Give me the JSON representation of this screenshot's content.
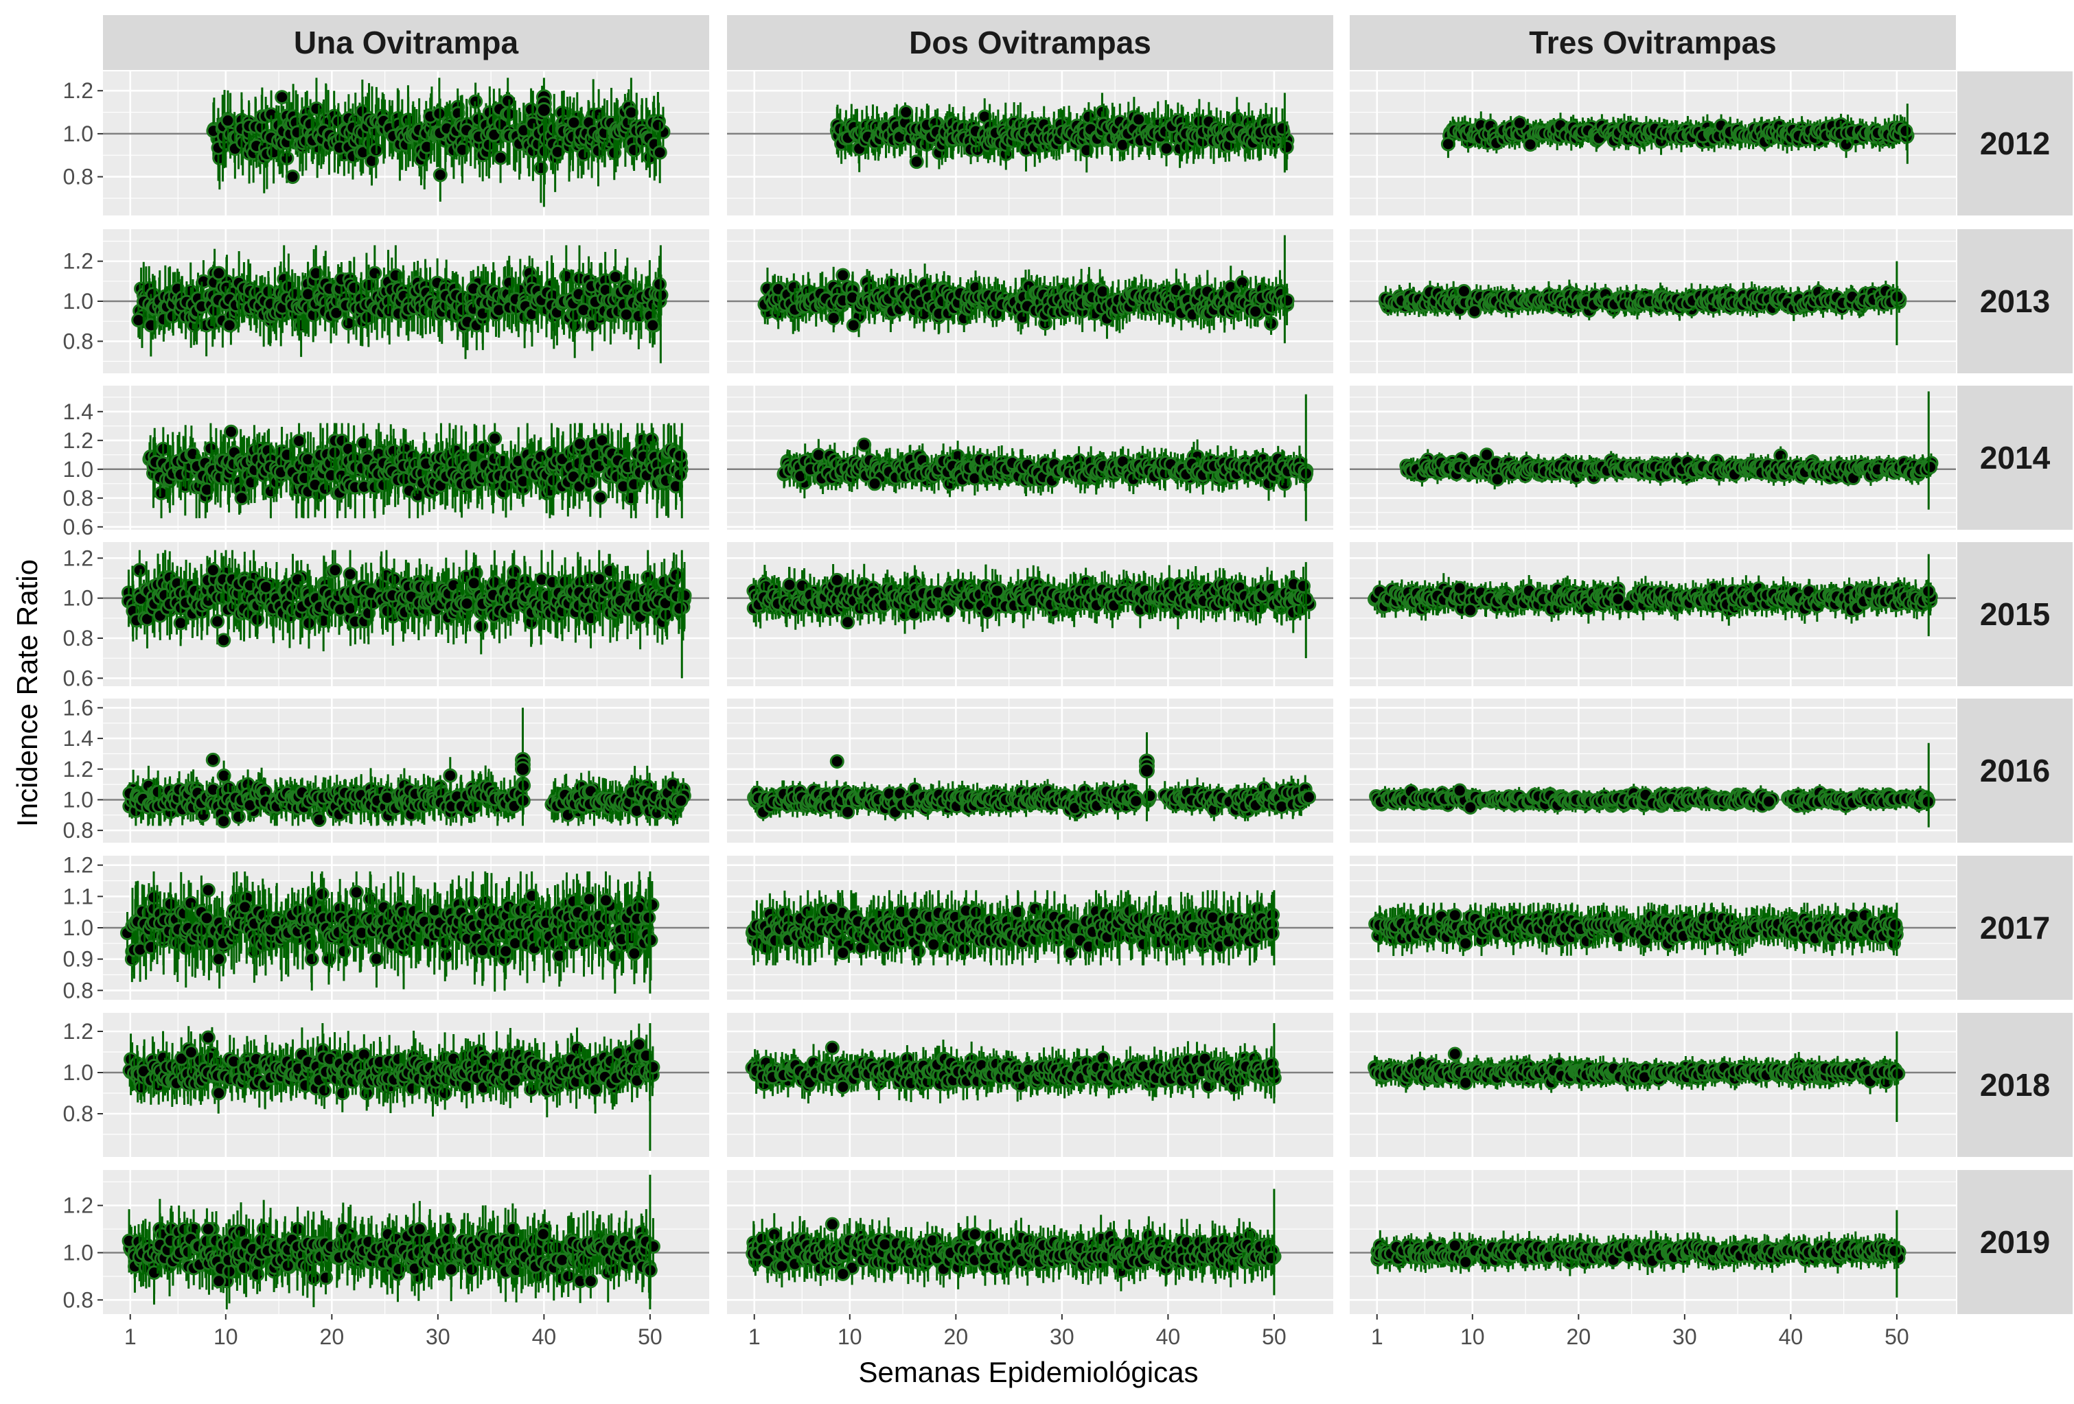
{
  "chart_data": {
    "type": "scatter",
    "subtype": "faceted point-range (estimate with error bars)",
    "xlabel": "Semanas Epidemiológicas",
    "ylabel": "Incidence Rate Ratio",
    "xlim": [
      1,
      53
    ],
    "x_ticks": [
      1,
      10,
      20,
      30,
      40,
      50
    ],
    "reference_line": 1.0,
    "columns": [
      "Una Ovitrampa",
      "Dos Ovitrampas",
      "Tres Ovitrampas"
    ],
    "rows": [
      "2012",
      "2013",
      "2014",
      "2015",
      "2016",
      "2017",
      "2018",
      "2019"
    ],
    "rows_config": [
      {
        "year": "2012",
        "ylim": [
          0.62,
          1.29
        ],
        "ticks": [
          0.8,
          1.0,
          1.2
        ],
        "tick_labels": [
          "0.8",
          "1.0",
          "1.2"
        ]
      },
      {
        "year": "2013",
        "ylim": [
          0.64,
          1.36
        ],
        "ticks": [
          0.8,
          1.0,
          1.2
        ],
        "tick_labels": [
          "0.8",
          "1.0",
          "1.2"
        ]
      },
      {
        "year": "2014",
        "ylim": [
          0.58,
          1.58
        ],
        "ticks": [
          0.6,
          0.8,
          1.0,
          1.2,
          1.4
        ],
        "tick_labels": [
          "0.6",
          "0.8",
          "1.0",
          "1.2",
          "1.4"
        ]
      },
      {
        "year": "2015",
        "ylim": [
          0.56,
          1.28
        ],
        "ticks": [
          0.6,
          0.8,
          1.0,
          1.2
        ],
        "tick_labels": [
          "0.6",
          "0.8",
          "1.0",
          "1.2"
        ]
      },
      {
        "year": "2016",
        "ylim": [
          0.72,
          1.66
        ],
        "ticks": [
          0.8,
          1.0,
          1.2,
          1.4,
          1.6
        ],
        "tick_labels": [
          "0.8",
          "1.0",
          "1.2",
          "1.4",
          "1.6"
        ]
      },
      {
        "year": "2017",
        "ylim": [
          0.77,
          1.23
        ],
        "ticks": [
          0.8,
          0.9,
          1.0,
          1.1,
          1.2
        ],
        "tick_labels": [
          "0.8",
          "0.9",
          "1.0",
          "1.1",
          "1.2"
        ]
      },
      {
        "year": "2018",
        "ylim": [
          0.59,
          1.29
        ],
        "ticks": [
          0.8,
          1.0,
          1.2
        ],
        "tick_labels": [
          "0.8",
          "1.0",
          "1.2"
        ]
      },
      {
        "year": "2019",
        "ylim": [
          0.74,
          1.35
        ],
        "ticks": [
          0.8,
          1.0,
          1.2
        ],
        "tick_labels": [
          "0.8",
          "1.0",
          "1.2"
        ]
      }
    ],
    "series_notes": "Each facet shows, per epidemiological week, a cluster of point estimates (black dots with green outline) with vertical green 95% interval lines; reference line at IRR = 1.0.",
    "panels": [
      {
        "column": "Una Ovitrampa",
        "year": "2012",
        "x_range": [
          9,
          51
        ],
        "weeks_with_estimates": [
          [
            9,
            51
          ]
        ],
        "typical_range": [
          0.9,
          1.1
        ],
        "min_point": 0.8,
        "max_point": 1.17,
        "ci_range": [
          0.66,
          1.26
        ],
        "highlight_point": {
          "week": 40,
          "value": 1.17
        }
      },
      {
        "column": "Dos Ovitrampas",
        "year": "2012",
        "x_range": [
          9,
          51
        ],
        "weeks_with_estimates": [
          [
            9,
            51
          ]
        ],
        "typical_range": [
          0.94,
          1.06
        ],
        "min_point": 0.87,
        "max_point": 1.1,
        "ci_range": [
          0.82,
          1.19
        ]
      },
      {
        "column": "Tres Ovitrampas",
        "year": "2012",
        "x_range": [
          8,
          51
        ],
        "weeks_with_estimates": [
          [
            8,
            51
          ]
        ],
        "typical_range": [
          0.97,
          1.03
        ],
        "min_point": 0.95,
        "max_point": 1.05,
        "ci_range": [
          0.86,
          1.14
        ]
      },
      {
        "column": "Una Ovitrampa",
        "year": "2013",
        "x_range": [
          2,
          51
        ],
        "weeks_with_estimates": [
          [
            2,
            51
          ]
        ],
        "typical_range": [
          0.9,
          1.1
        ],
        "min_point": 0.88,
        "max_point": 1.14,
        "ci_range": [
          0.69,
          1.28
        ]
      },
      {
        "column": "Dos Ovitrampas",
        "year": "2013",
        "x_range": [
          2,
          51
        ],
        "weeks_with_estimates": [
          [
            2,
            51
          ]
        ],
        "typical_range": [
          0.94,
          1.06
        ],
        "min_point": 0.88,
        "max_point": 1.13,
        "ci_range": [
          0.79,
          1.33
        ]
      },
      {
        "column": "Tres Ovitrampas",
        "year": "2013",
        "x_range": [
          2,
          50
        ],
        "weeks_with_estimates": [
          [
            2,
            50
          ]
        ],
        "typical_range": [
          0.97,
          1.03
        ],
        "min_point": 0.95,
        "max_point": 1.05,
        "ci_range": [
          0.78,
          1.2
        ]
      },
      {
        "column": "Una Ovitrampa",
        "year": "2014",
        "x_range": [
          3,
          53
        ],
        "weeks_with_estimates": [
          [
            3,
            53
          ]
        ],
        "typical_range": [
          0.85,
          1.15
        ],
        "min_point": 0.8,
        "max_point": 1.26,
        "ci_range": [
          0.66,
          1.32
        ]
      },
      {
        "column": "Dos Ovitrampas",
        "year": "2014",
        "x_range": [
          4,
          53
        ],
        "weeks_with_estimates": [
          [
            4,
            53
          ]
        ],
        "typical_range": [
          0.93,
          1.07
        ],
        "min_point": 0.9,
        "max_point": 1.17,
        "ci_range": [
          0.64,
          1.52
        ]
      },
      {
        "column": "Tres Ovitrampas",
        "year": "2014",
        "x_range": [
          4,
          53
        ],
        "weeks_with_estimates": [
          [
            4,
            53
          ]
        ],
        "typical_range": [
          0.96,
          1.04
        ],
        "min_point": 0.93,
        "max_point": 1.1,
        "ci_range": [
          0.72,
          1.54
        ]
      },
      {
        "column": "Una Ovitrampa",
        "year": "2015",
        "x_range": [
          1,
          53
        ],
        "weeks_with_estimates": [
          [
            1,
            53
          ]
        ],
        "typical_range": [
          0.88,
          1.08
        ],
        "min_point": 0.79,
        "max_point": 1.14,
        "ci_range": [
          0.6,
          1.24
        ]
      },
      {
        "column": "Dos Ovitrampas",
        "year": "2015",
        "x_range": [
          1,
          53
        ],
        "weeks_with_estimates": [
          [
            1,
            24
          ],
          [
            25,
            53
          ]
        ],
        "typical_range": [
          0.93,
          1.05
        ],
        "min_point": 0.88,
        "max_point": 1.09,
        "ci_range": [
          0.7,
          1.18
        ]
      },
      {
        "column": "Tres Ovitrampas",
        "year": "2015",
        "x_range": [
          1,
          53
        ],
        "weeks_with_estimates": [
          [
            1,
            24
          ],
          [
            25,
            53
          ]
        ],
        "typical_range": [
          0.96,
          1.04
        ],
        "min_point": 0.94,
        "max_point": 1.05,
        "ci_range": [
          0.81,
          1.22
        ]
      },
      {
        "column": "Una Ovitrampa",
        "year": "2016",
        "x_range": [
          1,
          53
        ],
        "weeks_with_estimates": [
          [
            1,
            37
          ],
          [
            38,
            38
          ],
          [
            41,
            53
          ]
        ],
        "typical_range": [
          0.92,
          1.08
        ],
        "min_point": 0.86,
        "max_point": 1.26,
        "ci_range": [
          0.83,
          1.6
        ],
        "highlight_point": {
          "week": 38,
          "value": 1.26
        }
      },
      {
        "column": "Dos Ovitrampas",
        "year": "2016",
        "x_range": [
          1,
          53
        ],
        "weeks_with_estimates": [
          [
            1,
            37
          ],
          [
            38,
            38
          ],
          [
            40,
            45
          ],
          [
            46,
            53
          ]
        ],
        "typical_range": [
          0.95,
          1.05
        ],
        "min_point": 0.92,
        "max_point": 1.25,
        "ci_range": [
          0.86,
          1.44
        ],
        "highlight_point": {
          "week": 38,
          "value": 1.25
        }
      },
      {
        "column": "Tres Ovitrampas",
        "year": "2016",
        "x_range": [
          1,
          53
        ],
        "weeks_with_estimates": [
          [
            1,
            38
          ],
          [
            40,
            45
          ],
          [
            46,
            53
          ]
        ],
        "typical_range": [
          0.97,
          1.03
        ],
        "min_point": 0.95,
        "max_point": 1.06,
        "ci_range": [
          0.82,
          1.37
        ]
      },
      {
        "column": "Una Ovitrampa",
        "year": "2017",
        "x_range": [
          1,
          50
        ],
        "weeks_with_estimates": [
          [
            1,
            50
          ]
        ],
        "typical_range": [
          0.93,
          1.08
        ],
        "min_point": 0.9,
        "max_point": 1.12,
        "ci_range": [
          0.79,
          1.18
        ]
      },
      {
        "column": "Dos Ovitrampas",
        "year": "2017",
        "x_range": [
          1,
          50
        ],
        "weeks_with_estimates": [
          [
            1,
            50
          ]
        ],
        "typical_range": [
          0.95,
          1.05
        ],
        "min_point": 0.92,
        "max_point": 1.06,
        "ci_range": [
          0.88,
          1.12
        ]
      },
      {
        "column": "Tres Ovitrampas",
        "year": "2017",
        "x_range": [
          1,
          50
        ],
        "weeks_with_estimates": [
          [
            1,
            50
          ]
        ],
        "typical_range": [
          0.97,
          1.03
        ],
        "min_point": 0.95,
        "max_point": 1.04,
        "ci_range": [
          0.91,
          1.08
        ]
      },
      {
        "column": "Una Ovitrampa",
        "year": "2018",
        "x_range": [
          1,
          50
        ],
        "weeks_with_estimates": [
          [
            1,
            50
          ]
        ],
        "typical_range": [
          0.93,
          1.08
        ],
        "min_point": 0.9,
        "max_point": 1.17,
        "ci_range": [
          0.62,
          1.24
        ]
      },
      {
        "column": "Dos Ovitrampas",
        "year": "2018",
        "x_range": [
          1,
          50
        ],
        "weeks_with_estimates": [
          [
            1,
            50
          ]
        ],
        "typical_range": [
          0.95,
          1.05
        ],
        "min_point": 0.93,
        "max_point": 1.12,
        "ci_range": [
          0.85,
          1.24
        ]
      },
      {
        "column": "Tres Ovitrampas",
        "year": "2018",
        "x_range": [
          1,
          50
        ],
        "weeks_with_estimates": [
          [
            1,
            50
          ]
        ],
        "typical_range": [
          0.97,
          1.03
        ],
        "min_point": 0.95,
        "max_point": 1.09,
        "ci_range": [
          0.76,
          1.2
        ]
      },
      {
        "column": "Una Ovitrampa",
        "year": "2019",
        "x_range": [
          1,
          50
        ],
        "weeks_with_estimates": [
          [
            1,
            50
          ]
        ],
        "typical_range": [
          0.92,
          1.08
        ],
        "min_point": 0.88,
        "max_point": 1.1,
        "ci_range": [
          0.76,
          1.33
        ]
      },
      {
        "column": "Dos Ovitrampas",
        "year": "2019",
        "x_range": [
          1,
          50
        ],
        "weeks_with_estimates": [
          [
            1,
            50
          ]
        ],
        "typical_range": [
          0.94,
          1.05
        ],
        "min_point": 0.91,
        "max_point": 1.12,
        "ci_range": [
          0.82,
          1.27
        ]
      },
      {
        "column": "Tres Ovitrampas",
        "year": "2019",
        "x_range": [
          1,
          50
        ],
        "weeks_with_estimates": [
          [
            1,
            50
          ]
        ],
        "typical_range": [
          0.97,
          1.03
        ],
        "min_point": 0.96,
        "max_point": 1.03,
        "ci_range": [
          0.81,
          1.18
        ]
      }
    ]
  },
  "colors": {
    "panel_background": "#ebebeb",
    "grid_major": "#ffffff",
    "strip_background": "#d9d9d9",
    "reference_line": "#7f7f7f",
    "point_fill": "#000000",
    "point_outline": "#1e7a1e",
    "error_bar": "#006400",
    "tick_text": "#4d4d4d"
  }
}
